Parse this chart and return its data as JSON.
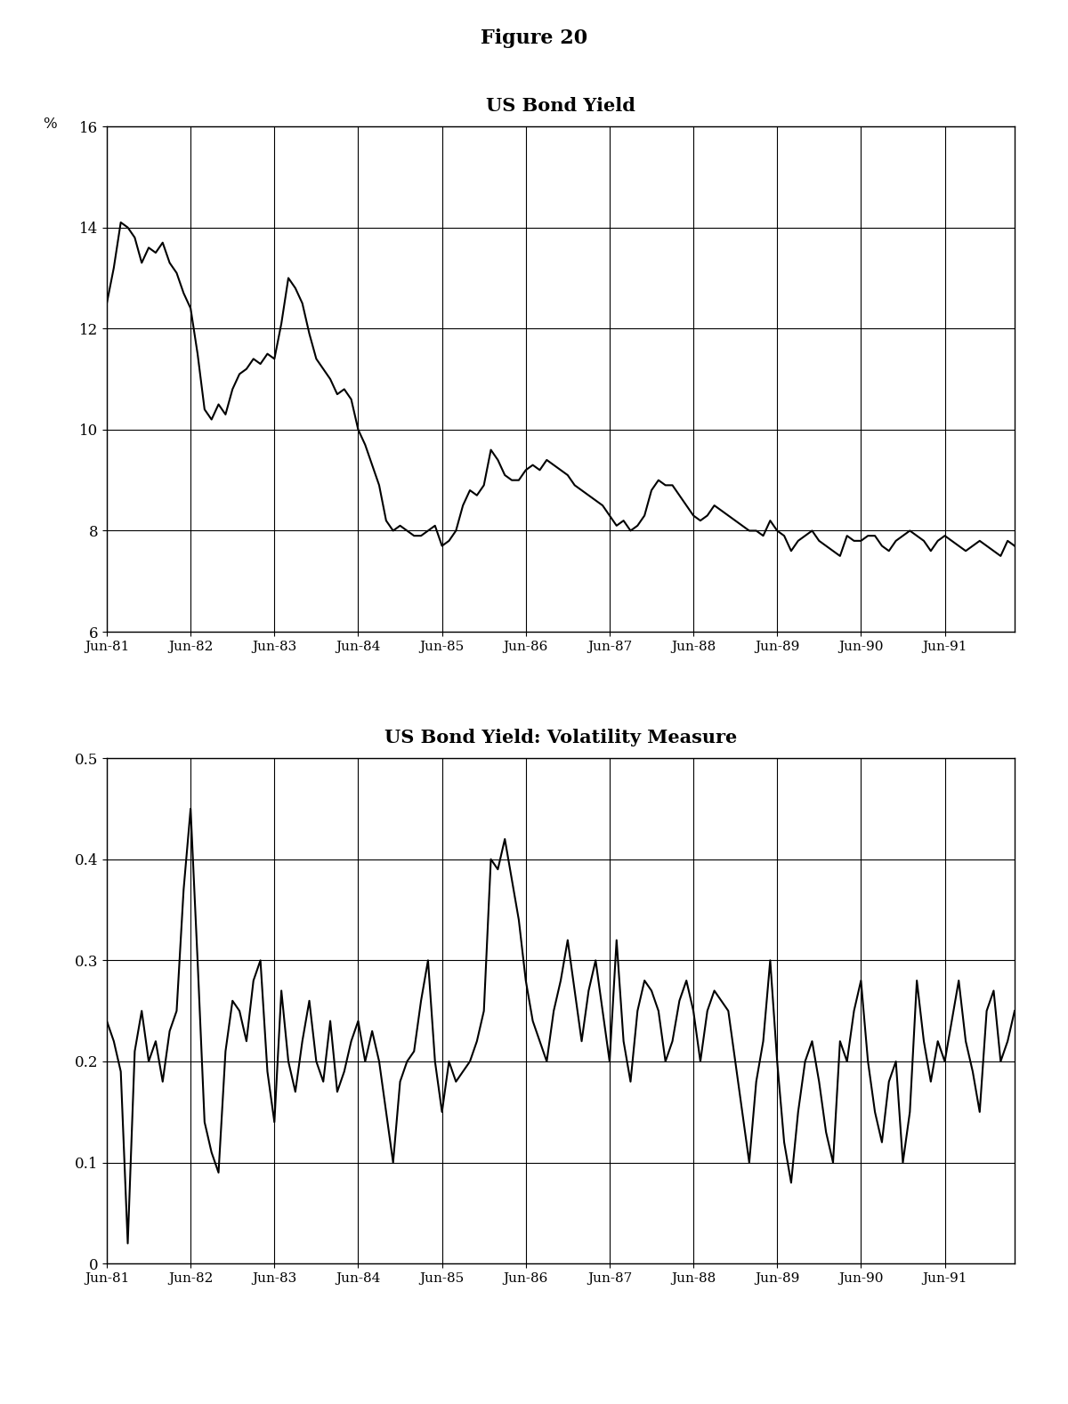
{
  "fig_title": "Figure 20",
  "plot1_title": "US Bond Yield",
  "plot2_title": "US Bond Yield: Volatility Measure",
  "plot1_ylabel": "%",
  "plot1_ylim": [
    6,
    16
  ],
  "plot1_yticks": [
    6,
    8,
    10,
    12,
    14,
    16
  ],
  "plot2_ylim": [
    0,
    0.5
  ],
  "plot2_yticks": [
    0,
    0.1,
    0.2,
    0.3,
    0.4,
    0.5
  ],
  "x_labels": [
    "Jun-81",
    "Jun-82",
    "Jun-83",
    "Jun-84",
    "Jun-85",
    "Jun-86",
    "Jun-87",
    "Jun-88",
    "Jun-89",
    "Jun-90",
    "Jun-91"
  ],
  "background_color": "#ffffff",
  "line_color": "#000000",
  "grid_color": "#000000",
  "bond_yield": [
    12.5,
    13.2,
    14.1,
    14.0,
    13.8,
    13.3,
    13.6,
    13.5,
    13.7,
    13.3,
    13.1,
    12.7,
    12.4,
    11.5,
    10.4,
    10.2,
    10.5,
    10.3,
    10.8,
    11.1,
    11.2,
    11.4,
    11.3,
    11.5,
    11.4,
    12.1,
    13.0,
    12.8,
    12.5,
    11.9,
    11.4,
    11.2,
    11.0,
    10.7,
    10.8,
    10.6,
    10.0,
    9.7,
    9.3,
    8.9,
    8.2,
    8.0,
    8.1,
    8.0,
    7.9,
    7.9,
    8.0,
    8.1,
    7.7,
    7.8,
    8.0,
    8.5,
    8.8,
    8.7,
    8.9,
    9.6,
    9.4,
    9.1,
    9.0,
    9.0,
    9.2,
    9.3,
    9.2,
    9.4,
    9.3,
    9.2,
    9.1,
    8.9,
    8.8,
    8.7,
    8.6,
    8.5,
    8.3,
    8.1,
    8.2,
    8.0,
    8.1,
    8.3,
    8.8,
    9.0,
    8.9,
    8.9,
    8.7,
    8.5,
    8.3,
    8.2,
    8.3,
    8.5,
    8.4,
    8.3,
    8.2,
    8.1,
    8.0,
    8.0,
    7.9,
    8.2,
    8.0,
    7.9,
    7.6,
    7.8,
    7.9,
    8.0,
    7.8,
    7.7,
    7.6,
    7.5,
    7.9,
    7.8,
    7.8,
    7.9,
    7.9,
    7.7,
    7.6,
    7.8,
    7.9,
    8.0,
    7.9,
    7.8,
    7.6,
    7.8,
    7.9,
    7.8,
    7.7,
    7.6,
    7.7,
    7.8,
    7.7,
    7.6,
    7.5,
    7.8,
    7.7
  ],
  "volatility": [
    0.24,
    0.22,
    0.19,
    0.02,
    0.21,
    0.25,
    0.2,
    0.22,
    0.18,
    0.23,
    0.25,
    0.37,
    0.45,
    0.3,
    0.14,
    0.11,
    0.09,
    0.21,
    0.26,
    0.25,
    0.22,
    0.28,
    0.3,
    0.19,
    0.14,
    0.27,
    0.2,
    0.17,
    0.22,
    0.26,
    0.2,
    0.18,
    0.24,
    0.17,
    0.19,
    0.22,
    0.24,
    0.2,
    0.23,
    0.2,
    0.15,
    0.1,
    0.18,
    0.2,
    0.21,
    0.26,
    0.3,
    0.2,
    0.15,
    0.2,
    0.18,
    0.19,
    0.2,
    0.22,
    0.25,
    0.4,
    0.39,
    0.42,
    0.38,
    0.34,
    0.28,
    0.24,
    0.22,
    0.2,
    0.25,
    0.28,
    0.32,
    0.27,
    0.22,
    0.27,
    0.3,
    0.25,
    0.2,
    0.32,
    0.22,
    0.18,
    0.25,
    0.28,
    0.27,
    0.25,
    0.2,
    0.22,
    0.26,
    0.28,
    0.25,
    0.2,
    0.25,
    0.27,
    0.26,
    0.25,
    0.2,
    0.15,
    0.1,
    0.18,
    0.22,
    0.3,
    0.2,
    0.12,
    0.08,
    0.15,
    0.2,
    0.22,
    0.18,
    0.13,
    0.1,
    0.22,
    0.2,
    0.25,
    0.28,
    0.2,
    0.15,
    0.12,
    0.18,
    0.2,
    0.1,
    0.15,
    0.28,
    0.22,
    0.18,
    0.22,
    0.2,
    0.24,
    0.28,
    0.22,
    0.19,
    0.15,
    0.25,
    0.27,
    0.2,
    0.22,
    0.25
  ]
}
